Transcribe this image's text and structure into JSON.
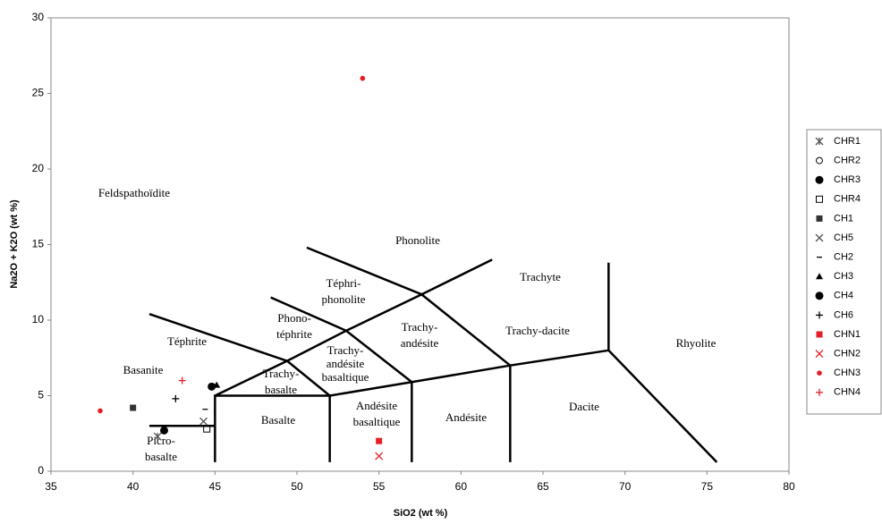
{
  "chart_data": {
    "type": "scatter",
    "x_label": "SiO2  (wt %)",
    "y_label": "Na2O + K2O  (wt %)",
    "xlim": [
      35,
      80
    ],
    "xticks": [
      35,
      40,
      45,
      50,
      55,
      60,
      65,
      70,
      75,
      80
    ],
    "ylim": [
      0,
      30
    ],
    "yticks": [
      0,
      5,
      10,
      15,
      20,
      25,
      30
    ],
    "annotations": [
      "Feldspathoïdite",
      "Phonolite",
      [
        "Téphri-",
        "phonolite"
      ],
      "Trachyte",
      [
        "Phono-",
        "téphrite"
      ],
      [
        "Trachy-",
        "andésite"
      ],
      [
        "Trachy-",
        "andésite",
        "basaltique"
      ],
      "Trachy-dacite",
      "Rhyolite",
      "Téphrite",
      "Basanite",
      [
        "Trachy-",
        "basalte"
      ],
      "Basalte",
      [
        "Andésite",
        "basaltique"
      ],
      "Andésite",
      "Dacite",
      [
        "Picro-",
        "basalte"
      ]
    ],
    "series": [
      {
        "name": "CHR1",
        "marker": "asterisk",
        "color": "#555555",
        "x": [
          41.5
        ],
        "values": [
          2.3
        ]
      },
      {
        "name": "CHR2",
        "marker": "open-circle",
        "color": "#000000",
        "x": [],
        "values": []
      },
      {
        "name": "CHR3",
        "marker": "circle",
        "color": "#000000",
        "x": [
          41.9
        ],
        "values": [
          2.7
        ]
      },
      {
        "name": "CHR4",
        "marker": "open-square",
        "color": "#000000",
        "x": [
          44.5
        ],
        "values": [
          2.8
        ]
      },
      {
        "name": "CH1",
        "marker": "square",
        "color": "#333333",
        "x": [
          40
        ],
        "values": [
          4.2
        ]
      },
      {
        "name": "CH5",
        "marker": "x",
        "color": "#555555",
        "x": [
          44.3
        ],
        "values": [
          3.3
        ]
      },
      {
        "name": "CH2",
        "marker": "dash",
        "color": "#000000",
        "x": [
          44.4
        ],
        "values": [
          4.1
        ]
      },
      {
        "name": "CH3",
        "marker": "triangle",
        "color": "#000000",
        "x": [
          45.1
        ],
        "values": [
          5.7
        ]
      },
      {
        "name": "CH4",
        "marker": "circle",
        "color": "#000000",
        "x": [
          44.8
        ],
        "values": [
          5.6
        ]
      },
      {
        "name": "CH6",
        "marker": "plus",
        "color": "#000000",
        "x": [
          42.6
        ],
        "values": [
          4.8
        ]
      },
      {
        "name": "CHN1",
        "marker": "square",
        "color": "#e31e24",
        "x": [
          55
        ],
        "values": [
          2
        ]
      },
      {
        "name": "CHN2",
        "marker": "x",
        "color": "#e31e24",
        "x": [
          55
        ],
        "values": [
          1
        ]
      },
      {
        "name": "CHN3",
        "marker": "dot",
        "color": "#e31e24",
        "x": [
          38,
          54
        ],
        "values": [
          4,
          26
        ]
      },
      {
        "name": "CHN4",
        "marker": "plus",
        "color": "#e31e24",
        "x": [
          43
        ],
        "values": [
          6
        ]
      }
    ]
  }
}
